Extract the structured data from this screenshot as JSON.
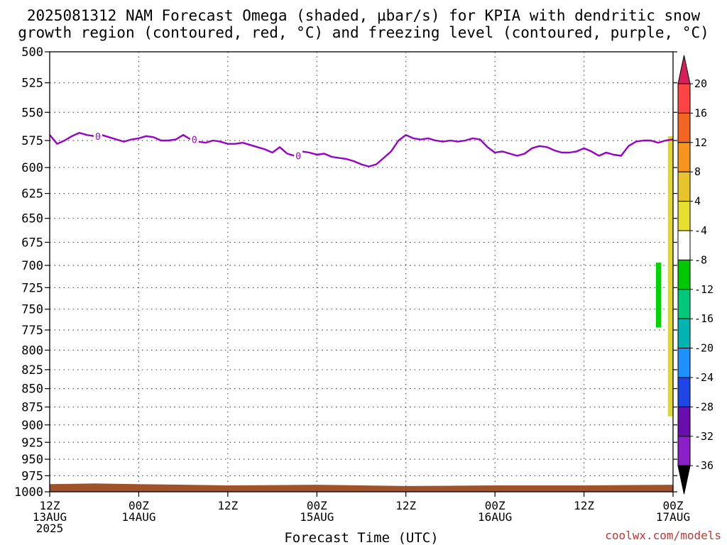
{
  "chart_data": {
    "type": "time-height",
    "title_line1": "2025081312 NAM Forecast Omega (shaded, µbar/s) for KPIA with dendritic snow",
    "title_line2": "growth region (contoured, red, °C) and freezing level (contoured, purple, °C)",
    "xlabel": "Forecast Time (UTC)",
    "credit": "coolwx.com/models",
    "ylim": [
      1000,
      500
    ],
    "y_ticks": [
      500,
      525,
      550,
      575,
      600,
      625,
      650,
      675,
      700,
      725,
      750,
      775,
      800,
      825,
      850,
      875,
      900,
      925,
      950,
      975,
      1000
    ],
    "y_tick_labels": [
      "500",
      "525",
      "550",
      "575",
      "600",
      "625",
      "650",
      "675",
      "700",
      "725",
      "750",
      "775",
      "800",
      "825",
      "850",
      "875",
      "900",
      "925",
      "950",
      "975",
      "1000"
    ],
    "x_range_hours": [
      0,
      84
    ],
    "x_ticks": [
      {
        "hour": 0,
        "line1": "12Z",
        "line2": "13AUG",
        "line3": "2025"
      },
      {
        "hour": 12,
        "line1": "00Z",
        "line2": "14AUG",
        "line3": ""
      },
      {
        "hour": 24,
        "line1": "12Z",
        "line2": "",
        "line3": ""
      },
      {
        "hour": 36,
        "line1": "00Z",
        "line2": "15AUG",
        "line3": ""
      },
      {
        "hour": 48,
        "line1": "12Z",
        "line2": "",
        "line3": ""
      },
      {
        "hour": 60,
        "line1": "00Z",
        "line2": "16AUG",
        "line3": ""
      },
      {
        "hour": 72,
        "line1": "12Z",
        "line2": "",
        "line3": ""
      },
      {
        "hour": 84,
        "line1": "00Z",
        "line2": "17AUG",
        "line3": ""
      }
    ],
    "grid": true,
    "freezing_level": {
      "color": "#9900cc",
      "contour_label": "0",
      "label_hours": [
        6.5,
        19.5,
        33.5
      ],
      "hours": [
        0,
        1,
        2,
        3,
        4,
        5,
        6,
        7,
        8,
        9,
        10,
        11,
        12,
        13,
        14,
        15,
        16,
        17,
        18,
        19,
        20,
        21,
        22,
        23,
        24,
        25,
        26,
        27,
        28,
        29,
        30,
        31,
        32,
        33,
        34,
        35,
        36,
        37,
        38,
        39,
        40,
        41,
        42,
        43,
        44,
        45,
        46,
        47,
        48,
        49,
        50,
        51,
        52,
        53,
        54,
        55,
        56,
        57,
        58,
        59,
        60,
        61,
        62,
        63,
        64,
        65,
        66,
        67,
        68,
        69,
        70,
        71,
        72,
        73,
        74,
        75,
        76,
        77,
        78,
        79,
        80,
        81,
        82,
        83,
        84
      ],
      "levels": [
        570,
        578,
        575,
        571,
        568,
        570,
        571,
        570,
        572,
        574,
        576,
        574,
        573,
        571,
        572,
        575,
        575,
        574,
        570,
        574,
        576,
        577,
        575,
        576,
        578,
        578,
        577,
        579,
        581,
        583,
        586,
        581,
        587,
        589,
        585,
        586,
        588,
        587,
        590,
        591,
        592,
        594,
        597,
        599,
        597,
        591,
        585,
        575,
        570,
        573,
        574,
        573,
        575,
        576,
        575,
        576,
        575,
        573,
        574,
        581,
        586,
        585,
        587,
        589,
        587,
        582,
        580,
        581,
        584,
        586,
        586,
        585,
        582,
        585,
        589,
        586,
        588,
        589,
        580,
        576,
        575,
        575,
        577,
        575,
        574
      ]
    },
    "omega_shaded": [
      {
        "name": "4 to 8",
        "color": "#e0d830",
        "hour_start": 83.3,
        "hour_end": 84,
        "p_top": 571,
        "p_bottom": 888
      },
      {
        "name": "-8 to -4",
        "color": "#00d400",
        "hour_start": 81.7,
        "hour_end": 82.4,
        "p_top": 697,
        "p_bottom": 772
      }
    ],
    "surface_terrain": {
      "color": "#a0522d",
      "p_bottom": 1000,
      "hours": [
        0,
        6,
        12,
        24,
        36,
        48,
        60,
        72,
        84
      ],
      "p_top": [
        988,
        987,
        988,
        990,
        989,
        991,
        990,
        990,
        989
      ]
    },
    "colorbar": {
      "labels": [
        "20",
        "16",
        "12",
        "8",
        "4",
        "-4",
        "-8",
        "-12",
        "-16",
        "-20",
        "-24",
        "-28",
        "-32",
        "-36"
      ],
      "colors": [
        "#d81e5b",
        "#ff4444",
        "#f26522",
        "#f7941d",
        "#e8c42c",
        "#e8e030",
        "#ffffff",
        "#00c800",
        "#00c87a",
        "#00b4b4",
        "#1e90ff",
        "#1e46e6",
        "#6a0dad",
        "#8b20c8",
        "#a0a0a0",
        "#000000"
      ]
    }
  }
}
